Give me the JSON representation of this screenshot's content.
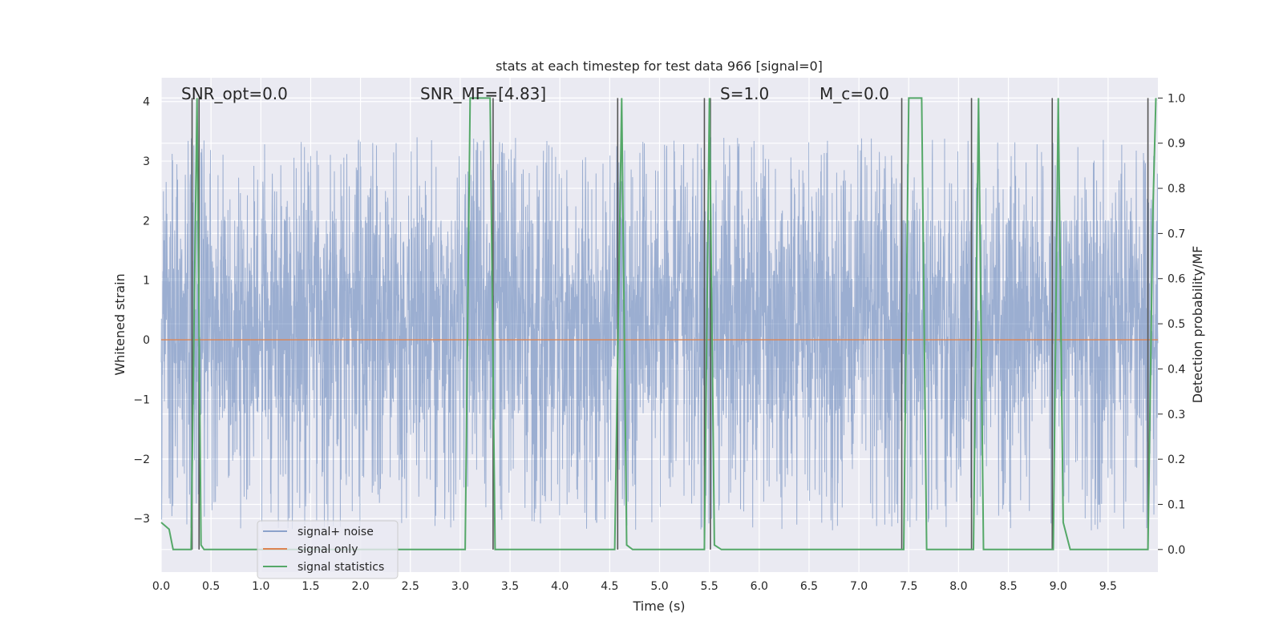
{
  "chart_data": {
    "type": "line",
    "title": "stats at each timestep for test data 966 [signal=0]",
    "xlabel": "Time (s)",
    "ylabel": "Whitened strain",
    "y2label": "Detection probability/MF",
    "xlim": [
      0,
      10
    ],
    "ylim": [
      -3.9,
      4.4
    ],
    "y2lim": [
      -0.05,
      1.045
    ],
    "xticks": [
      0.0,
      0.5,
      1.0,
      1.5,
      2.0,
      2.5,
      3.0,
      3.5,
      4.0,
      4.5,
      5.0,
      5.5,
      6.0,
      6.5,
      7.0,
      7.5,
      8.0,
      8.5,
      9.0,
      9.5
    ],
    "xtick_labels": [
      "0.0",
      "0.5",
      "1.0",
      "1.5",
      "2.0",
      "2.5",
      "3.0",
      "3.5",
      "4.0",
      "4.5",
      "5.0",
      "5.5",
      "6.0",
      "6.5",
      "7.0",
      "7.5",
      "8.0",
      "8.5",
      "9.0",
      "9.5"
    ],
    "yticks": [
      -3,
      -2,
      -1,
      0,
      1,
      2,
      3,
      4
    ],
    "ytick_labels": [
      "−3",
      "−2",
      "−1",
      "0",
      "1",
      "2",
      "3",
      "4"
    ],
    "y2ticks": [
      0.0,
      0.1,
      0.2,
      0.3,
      0.4,
      0.5,
      0.6,
      0.7,
      0.8,
      0.9,
      1.0
    ],
    "y2tick_labels": [
      "0.0",
      "0.1",
      "0.2",
      "0.3",
      "0.4",
      "0.5",
      "0.6",
      "0.7",
      "0.8",
      "0.9",
      "1.0"
    ],
    "grid": true,
    "legend_position": "lower-left",
    "annotations": [
      {
        "text": "SNR_opt=0.0",
        "x": 0.2
      },
      {
        "text": "SNR_MF=[4.83]",
        "x": 2.6
      },
      {
        "text": "S=1.0",
        "x": 5.6
      },
      {
        "text": "M_c=0.0",
        "x": 6.6
      }
    ],
    "series": [
      {
        "name": "signal+ noise",
        "color": "#4c72b0",
        "kind": "noise",
        "sample_rate": 400,
        "typical_max": 2.0,
        "typical_min": -1.4
      },
      {
        "name": "signal only",
        "color": "#dd8452",
        "x": [
          0,
          10
        ],
        "y": [
          0,
          0
        ]
      },
      {
        "name": "signal statistics",
        "color": "#55a868",
        "axis": "right",
        "x": [
          0.0,
          0.08,
          0.12,
          0.3,
          0.36,
          0.4,
          0.43,
          0.5,
          3.05,
          3.1,
          3.3,
          3.35,
          4.55,
          4.62,
          4.67,
          4.73,
          5.45,
          5.5,
          5.55,
          5.62,
          7.45,
          7.5,
          7.63,
          7.68,
          8.15,
          8.2,
          8.25,
          8.3,
          8.95,
          9.0,
          9.05,
          9.12,
          9.9,
          9.95,
          9.98
        ],
        "y": [
          0.06,
          0.045,
          0.0,
          0.0,
          1.0,
          0.01,
          0.0,
          0.0,
          0.0,
          1.0,
          1.0,
          0.0,
          0.0,
          1.0,
          0.01,
          0.0,
          0.0,
          1.0,
          0.01,
          0.0,
          0.0,
          1.0,
          1.0,
          0.0,
          0.0,
          1.0,
          0.0,
          0.0,
          0.0,
          1.0,
          0.06,
          0.0,
          0.0,
          0.75,
          1.0
        ]
      }
    ],
    "vlines": [
      0.31,
      0.38,
      3.33,
      4.58,
      5.45,
      5.51,
      7.43,
      8.13,
      8.94,
      9.9
    ],
    "vline_color": "#555555"
  }
}
